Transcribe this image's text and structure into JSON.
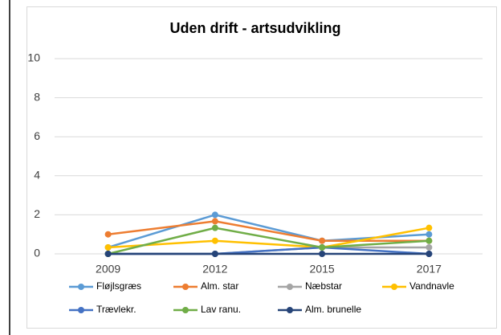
{
  "chart_data": {
    "type": "line",
    "title": "Uden drift - artsudvikling",
    "categories": [
      "2009",
      "2012",
      "2015",
      "2017"
    ],
    "series": [
      {
        "name": "Fløjlsgræs",
        "color": "#5b9bd5",
        "values": [
          0.33,
          2,
          0.67,
          1
        ]
      },
      {
        "name": "Alm. star",
        "color": "#ed7d31",
        "values": [
          1,
          1.67,
          0.67,
          0.67
        ]
      },
      {
        "name": "Næbstar",
        "color": "#a5a5a5",
        "values": [
          0,
          0,
          0.33,
          0.33
        ]
      },
      {
        "name": "Vandnavle",
        "color": "#ffc000",
        "values": [
          0.33,
          0.67,
          0.33,
          1.33
        ]
      },
      {
        "name": "Trævlekr.",
        "color": "#4472c4",
        "values": [
          0,
          0,
          0.33,
          0
        ]
      },
      {
        "name": "Lav ranu.",
        "color": "#70ad47",
        "values": [
          0,
          1.33,
          0.33,
          0.67
        ]
      },
      {
        "name": "Alm. brunelle",
        "color": "#264478",
        "values": [
          0,
          0,
          0,
          0
        ]
      }
    ],
    "ylim": [
      0,
      10
    ],
    "yticks": [
      0,
      2,
      4,
      6,
      8,
      10
    ],
    "grid": true,
    "legend": "bottom"
  }
}
